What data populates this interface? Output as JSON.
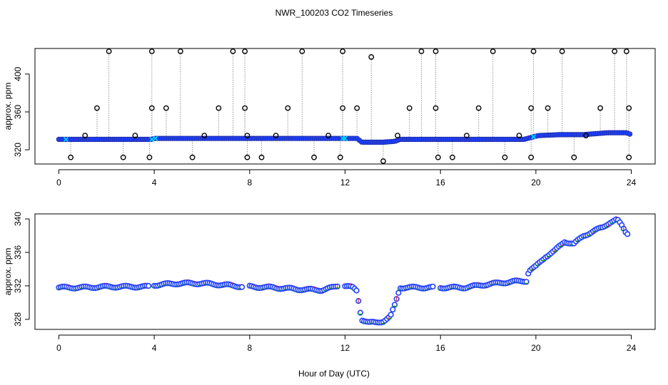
{
  "title": "NWR_100203  CO2 Timeseries",
  "xlabel": "Hour of Day (UTC)",
  "colors": {
    "marker": "#000000",
    "fill": "#1f3fff",
    "green": "#00b000",
    "red": "#ff0000",
    "cyan": "#00e0ff",
    "spike": "#9a9a9a"
  },
  "chart_data": [
    {
      "type": "scatter",
      "ylabel": "approx. ppm",
      "xlim": [
        -1.0,
        25.0
      ],
      "ylim": [
        305,
        427
      ],
      "xticks": [
        0,
        4,
        8,
        12,
        16,
        20,
        24
      ],
      "yticks": [
        320,
        360,
        400
      ],
      "baseline": [
        [
          0,
          331
        ],
        [
          3.9,
          331
        ],
        [
          4.0,
          332
        ],
        [
          12.5,
          332
        ],
        [
          12.7,
          328
        ],
        [
          13.6,
          328
        ],
        [
          14.1,
          329
        ],
        [
          14.3,
          331
        ],
        [
          19.5,
          331
        ],
        [
          19.8,
          333
        ],
        [
          20.1,
          335
        ],
        [
          21.0,
          336
        ],
        [
          22.0,
          336
        ],
        [
          22.5,
          337
        ],
        [
          23.0,
          338
        ],
        [
          23.8,
          338
        ],
        [
          24.0,
          336
        ]
      ],
      "series": [
        {
          "name": "high outliers",
          "x": [
            2.1,
            3.9,
            5.1,
            7.3,
            7.8,
            10.2,
            11.9,
            15.2,
            15.8,
            18.2,
            19.9,
            21.1,
            23.3,
            23.8
          ],
          "y": [
            424,
            424,
            424,
            424,
            424,
            424,
            424,
            424,
            424,
            424,
            424,
            424,
            424,
            424
          ]
        },
        {
          "name": "mid outliers",
          "x": [
            1.6,
            3.9,
            4.5,
            6.7,
            7.8,
            9.6,
            11.9,
            12.5,
            14.7,
            15.8,
            17.6,
            19.8,
            20.5,
            22.7,
            23.9
          ],
          "y": [
            364,
            364,
            364,
            364,
            364,
            364,
            364,
            364,
            364,
            364,
            364,
            364,
            364,
            364,
            364
          ]
        },
        {
          "name": "near outliers",
          "x": [
            13.1
          ],
          "y": [
            418
          ]
        },
        {
          "name": "low outliers",
          "x": [
            0.5,
            2.7,
            3.8,
            5.6,
            7.9,
            8.5,
            10.7,
            11.8,
            13.6,
            15.9,
            16.5,
            18.7,
            19.8,
            21.6,
            23.9
          ],
          "y": [
            312,
            312,
            312,
            312,
            312,
            312,
            312,
            312,
            308,
            312,
            312,
            312,
            312,
            312,
            312
          ]
        },
        {
          "name": "small outliers",
          "x": [
            1.1,
            3.2,
            6.1,
            7.9,
            9.1,
            11.3,
            14.2,
            17.1,
            19.3,
            22.1
          ],
          "y": [
            335,
            335,
            335,
            335,
            335,
            335,
            335,
            335,
            335,
            335
          ]
        }
      ]
    },
    {
      "type": "scatter",
      "ylabel": "approx. ppm",
      "xlim": [
        -1.0,
        25.0
      ],
      "ylim": [
        326.8,
        340.6
      ],
      "xticks": [
        0,
        4,
        8,
        12,
        16,
        20,
        24
      ],
      "yticks": [
        328,
        332,
        336,
        340
      ],
      "gaps": [
        [
          3.8,
          4.0
        ],
        [
          7.75,
          8.0
        ],
        [
          11.75,
          12.0
        ],
        [
          15.75,
          16.0
        ]
      ],
      "series": [
        {
          "name": "approx. ppm",
          "x": [
            0,
            1,
            2,
            3,
            3.75,
            4.0,
            5,
            6,
            7,
            7.75,
            8.0,
            9,
            10,
            11,
            11.5,
            11.7,
            12.0,
            12.3,
            12.5,
            12.6,
            12.7,
            13.0,
            13.3,
            13.6,
            13.9,
            14.1,
            14.3,
            15,
            15.7,
            16.0,
            17,
            18,
            19,
            19.6,
            19.7,
            20.0,
            20.4,
            20.8,
            21.2,
            21.6,
            22.0,
            22.4,
            22.8,
            23.1,
            23.4,
            23.6,
            23.8
          ],
          "y": [
            331.8,
            331.8,
            331.9,
            331.9,
            331.9,
            332.1,
            332.3,
            332.3,
            332.1,
            331.9,
            331.9,
            331.8,
            331.6,
            331.5,
            331.8,
            332.0,
            332.0,
            331.8,
            331.4,
            329.5,
            328.0,
            327.6,
            327.6,
            327.8,
            328.3,
            329.8,
            331.8,
            331.8,
            331.8,
            331.8,
            331.8,
            332.2,
            332.5,
            332.6,
            333.8,
            334.3,
            335.5,
            336.2,
            337.3,
            337.0,
            338.0,
            338.5,
            339.0,
            339.6,
            339.9,
            339.2,
            338.3
          ]
        }
      ]
    }
  ]
}
